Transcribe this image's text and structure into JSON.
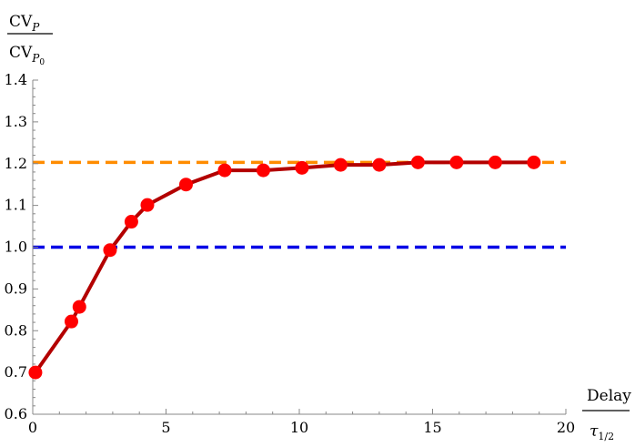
{
  "chart_data": {
    "type": "line",
    "title": "",
    "xlabel": {
      "numerator": "Delay",
      "denominator_base": "τ",
      "denominator_sub": "1/2"
    },
    "ylabel": {
      "numerator_base": "CV",
      "numerator_sub": "P",
      "denominator_base": "CV",
      "denominator_sub": "P",
      "denominator_subsub": "0"
    },
    "xlim": [
      0,
      20
    ],
    "ylim": [
      0.6,
      1.4
    ],
    "x_ticks": [
      "0",
      "5",
      "10",
      "15",
      "20"
    ],
    "y_ticks": [
      "0.6",
      "0.7",
      "0.8",
      "0.9",
      "1.0",
      "1.1",
      "1.2",
      "1.3",
      "1.4"
    ],
    "x_tick_values": [
      0,
      5,
      10,
      15,
      20
    ],
    "y_tick_values": [
      0.6,
      0.7,
      0.8,
      0.9,
      1.0,
      1.1,
      1.2,
      1.3,
      1.4
    ],
    "series": [
      {
        "line_color": "#b30000",
        "marker_color": "#ff0000",
        "x": [
          0.1,
          1.45,
          1.75,
          2.9,
          3.7,
          4.3,
          5.75,
          7.2,
          8.65,
          10.1,
          11.55,
          13.0,
          14.45,
          15.9,
          17.35,
          18.8
        ],
        "y": [
          0.7,
          0.822,
          0.857,
          0.993,
          1.061,
          1.101,
          1.15,
          1.184,
          1.184,
          1.19,
          1.197,
          1.197,
          1.203,
          1.203,
          1.203,
          1.203
        ]
      }
    ],
    "reference_lines": [
      {
        "y": 1.203,
        "color": "#ff8c00",
        "style": "dashed"
      },
      {
        "y": 1.0,
        "color": "#0000e6",
        "style": "dashed"
      }
    ],
    "grid": false,
    "legend": "none"
  }
}
